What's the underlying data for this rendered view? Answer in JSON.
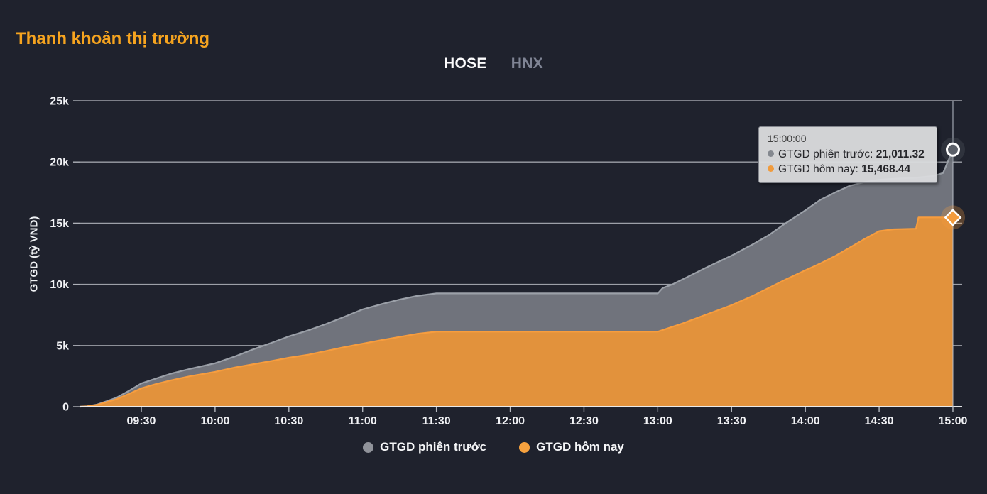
{
  "page": {
    "title": "Thanh khoản thị trường"
  },
  "tabs": [
    {
      "label": "HOSE",
      "active": true
    },
    {
      "label": "HNX",
      "active": false
    }
  ],
  "yaxis": {
    "title": "GTGD (tỷ VND)"
  },
  "tooltip": {
    "time": "15:00:00",
    "rows": [
      {
        "label": "GTGD phiên trước",
        "value": "21,011.32",
        "color": "#84888f"
      },
      {
        "label": "GTGD hôm nay",
        "value": "15,468.44",
        "color": "#f09b3d"
      }
    ]
  },
  "legend": [
    {
      "label": "GTGD phiên trước",
      "color": "#90939a"
    },
    {
      "label": "GTGD hôm nay",
      "color": "#f6a13e"
    }
  ],
  "colors": {
    "background": "#1f222d",
    "title_accent": "#f6a41f",
    "gridline": "#c7cad1",
    "baseline": "#edeff2",
    "crosshair": "#b7bcc7",
    "tab_active": "#fcfcfd",
    "tab_inactive": "#7f8494"
  },
  "chart_data": {
    "type": "area",
    "title": "Thanh khoản thị trường",
    "xlabel": "",
    "ylabel": "GTGD (tỷ VND)",
    "ylim": [
      0,
      25000
    ],
    "grid": true,
    "legend_position": "bottom",
    "crosshair_x": "15:00",
    "yticks": [
      {
        "v": 25000,
        "label": "25k"
      },
      {
        "v": 20000,
        "label": "20k"
      },
      {
        "v": 15000,
        "label": "15k"
      },
      {
        "v": 10000,
        "label": "10k"
      },
      {
        "v": 5000,
        "label": "5k"
      },
      {
        "v": 0,
        "label": "0"
      }
    ],
    "xticks": [
      "09:30",
      "10:00",
      "10:30",
      "11:00",
      "11:30",
      "12:00",
      "12:30",
      "13:00",
      "13:30",
      "14:00",
      "14:30",
      "15:00"
    ],
    "series": [
      {
        "name": "GTGD phiên trước",
        "fill": "#70737c",
        "line": "#9ba0a8",
        "marker": "circle",
        "marker_fill": "#5b6069",
        "points": [
          [
            "09:05",
            0
          ],
          [
            "09:08",
            40
          ],
          [
            "09:12",
            180
          ],
          [
            "09:16",
            450
          ],
          [
            "09:20",
            750
          ],
          [
            "09:25",
            1300
          ],
          [
            "09:30",
            1900
          ],
          [
            "09:36",
            2300
          ],
          [
            "09:42",
            2700
          ],
          [
            "09:50",
            3100
          ],
          [
            "10:00",
            3550
          ],
          [
            "10:08",
            4100
          ],
          [
            "10:15",
            4650
          ],
          [
            "10:22",
            5150
          ],
          [
            "10:30",
            5750
          ],
          [
            "10:38",
            6250
          ],
          [
            "10:45",
            6750
          ],
          [
            "10:52",
            7300
          ],
          [
            "11:00",
            7950
          ],
          [
            "11:08",
            8400
          ],
          [
            "11:15",
            8750
          ],
          [
            "11:22",
            9050
          ],
          [
            "11:30",
            9260
          ],
          [
            "12:00",
            9260
          ],
          [
            "13:00",
            9260
          ],
          [
            "13:02",
            9700
          ],
          [
            "13:06",
            10000
          ],
          [
            "13:12",
            10600
          ],
          [
            "13:20",
            11400
          ],
          [
            "13:30",
            12350
          ],
          [
            "13:38",
            13200
          ],
          [
            "13:45",
            14000
          ],
          [
            "13:52",
            15000
          ],
          [
            "14:00",
            16050
          ],
          [
            "14:06",
            16900
          ],
          [
            "14:12",
            17500
          ],
          [
            "14:18",
            18050
          ],
          [
            "14:24",
            18350
          ],
          [
            "14:30",
            18550
          ],
          [
            "14:38",
            18650
          ],
          [
            "14:45",
            18720
          ],
          [
            "14:52",
            18850
          ],
          [
            "14:56",
            19100
          ],
          [
            "15:00",
            21011.32
          ]
        ]
      },
      {
        "name": "GTGD hôm nay",
        "fill": "#e2923c",
        "line": "#f79d3e",
        "marker": "diamond",
        "marker_fill": "#f39b3d",
        "points": [
          [
            "09:05",
            0
          ],
          [
            "09:08",
            30
          ],
          [
            "09:12",
            150
          ],
          [
            "09:16",
            380
          ],
          [
            "09:20",
            620
          ],
          [
            "09:25",
            1050
          ],
          [
            "09:30",
            1500
          ],
          [
            "09:36",
            1850
          ],
          [
            "09:42",
            2150
          ],
          [
            "09:50",
            2500
          ],
          [
            "10:00",
            2850
          ],
          [
            "10:08",
            3200
          ],
          [
            "10:15",
            3450
          ],
          [
            "10:22",
            3700
          ],
          [
            "10:30",
            4000
          ],
          [
            "10:38",
            4250
          ],
          [
            "10:45",
            4550
          ],
          [
            "10:52",
            4850
          ],
          [
            "11:00",
            5150
          ],
          [
            "11:08",
            5450
          ],
          [
            "11:15",
            5700
          ],
          [
            "11:22",
            5950
          ],
          [
            "11:30",
            6130
          ],
          [
            "12:00",
            6130
          ],
          [
            "13:00",
            6130
          ],
          [
            "13:04",
            6400
          ],
          [
            "13:10",
            6800
          ],
          [
            "13:18",
            7400
          ],
          [
            "13:26",
            8000
          ],
          [
            "13:30",
            8300
          ],
          [
            "13:38",
            9000
          ],
          [
            "13:45",
            9700
          ],
          [
            "13:52",
            10400
          ],
          [
            "14:00",
            11150
          ],
          [
            "14:06",
            11700
          ],
          [
            "14:12",
            12300
          ],
          [
            "14:18",
            13000
          ],
          [
            "14:24",
            13700
          ],
          [
            "14:30",
            14350
          ],
          [
            "14:36",
            14500
          ],
          [
            "14:45",
            14550
          ],
          [
            "14:46",
            15468.44
          ],
          [
            "15:00",
            15468.44
          ]
        ]
      }
    ]
  }
}
